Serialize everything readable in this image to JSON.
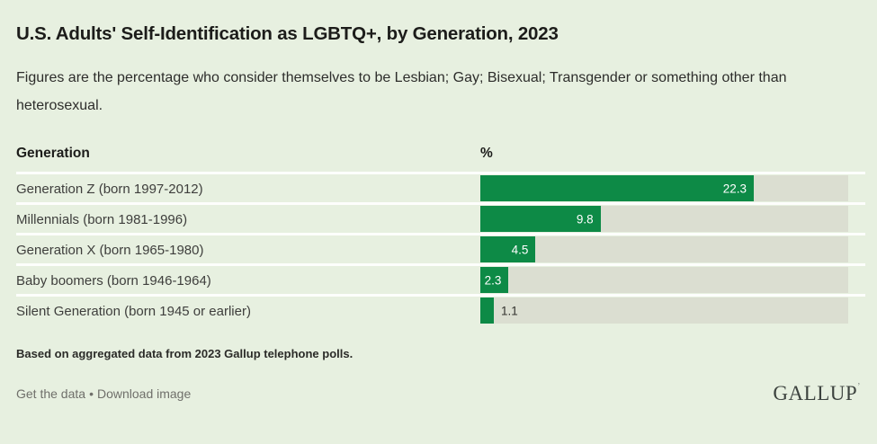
{
  "title": "U.S. Adults' Self-Identification as LGBTQ+, by Generation, 2023",
  "subtitle": "Figures are the percentage who consider themselves to be Lesbian; Gay; Bisexual; Transgender or something other than heterosexual.",
  "table": {
    "generation_header": "Generation",
    "percent_header": "%"
  },
  "chart_data": {
    "type": "bar",
    "orientation": "horizontal",
    "categories": [
      "Generation Z (born 1997-2012)",
      "Millennials (born 1981-1996)",
      "Generation X (born 1965-1980)",
      "Baby boomers (born 1946-1964)",
      "Silent Generation (born 1945 or earlier)"
    ],
    "values": [
      22.3,
      9.8,
      4.5,
      2.3,
      1.1
    ],
    "value_labels": [
      "22.3",
      "9.8",
      "4.5",
      "2.3",
      "1.1"
    ],
    "xlim": [
      0,
      30
    ],
    "bar_color": "#0d8a46",
    "track_color": "#dbded1",
    "grid": false,
    "legend": false
  },
  "footnote": "Based on aggregated data from 2023 Gallup telephone polls.",
  "footer": {
    "get_data_label": "Get the data",
    "separator": "•",
    "download_label": "Download image",
    "brand": "GALLUP",
    "brand_mark": "’"
  }
}
